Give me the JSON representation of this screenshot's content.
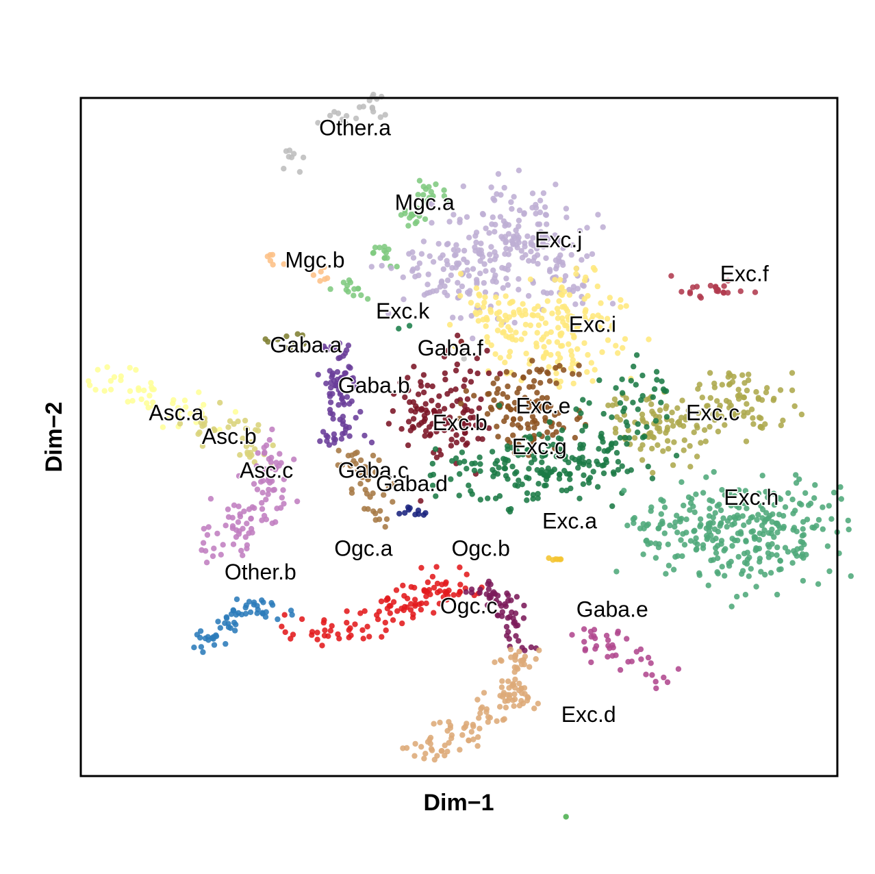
{
  "chart_data": {
    "type": "scatter",
    "title": "",
    "xlabel": "Dim−1",
    "ylabel": "Dim−2",
    "xlim": [
      -50,
      50
    ],
    "ylim": [
      -50,
      50
    ],
    "grid": false,
    "legend": "none",
    "clusters": [
      {
        "name": "Other.a",
        "color": "#bdbdbd",
        "n": 30,
        "points": [
          [
            -22,
            -41
          ],
          [
            -16,
            -47
          ],
          [
            -12,
            -49
          ]
        ],
        "sx": 1.4,
        "sy": 1.0
      },
      {
        "name": "Mgc.a",
        "color": "#7fc97f",
        "n": 55,
        "points": [
          [
            -14,
            -22
          ],
          [
            -10,
            -27
          ],
          [
            -6,
            -33
          ],
          [
            -4,
            -36
          ]
        ],
        "sx": 1.1,
        "sy": 0.9
      },
      {
        "name": "Mgc.b",
        "color": "#fdc086",
        "n": 12,
        "points": [
          [
            -25,
            -26
          ],
          [
            -21,
            -25
          ],
          [
            -18,
            -24
          ]
        ],
        "sx": 1.0,
        "sy": 1.0
      },
      {
        "name": "Exc.j",
        "color": "#beaed4",
        "n": 280,
        "points": [
          [
            1,
            -26
          ],
          [
            6,
            -27
          ],
          [
            11,
            -27
          ],
          [
            9,
            -33
          ],
          [
            4,
            -30
          ],
          [
            -2,
            -23
          ],
          [
            13,
            -23
          ]
        ],
        "sx": 4.2,
        "sy": 3.0
      },
      {
        "name": "Exc.f",
        "color": "#b03a4e",
        "n": 22,
        "points": [
          [
            31,
            -22
          ],
          [
            34,
            -22
          ],
          [
            36,
            -22
          ]
        ],
        "sx": 1.3,
        "sy": 0.8
      },
      {
        "name": "Exc.k",
        "color": "#1b7e4a",
        "n": 2,
        "points": [
          [
            -7,
            -16
          ]
        ],
        "sx": 0.4,
        "sy": 0.4
      },
      {
        "name": "Exc.i",
        "color": "#ffe87c",
        "n": 200,
        "points": [
          [
            7,
            -17
          ],
          [
            12,
            -17
          ],
          [
            16,
            -17
          ],
          [
            16,
            -21
          ],
          [
            10,
            -13
          ],
          [
            3,
            -18
          ],
          [
            14,
            -11
          ]
        ],
        "sx": 3.2,
        "sy": 2.5
      },
      {
        "name": "Gaba.a",
        "color": "#7f7f32",
        "n": 10,
        "points": [
          [
            -24,
            -14
          ],
          [
            -21,
            -14
          ]
        ],
        "sx": 1.0,
        "sy": 0.6
      },
      {
        "name": "Gaba.f",
        "color": "#c0c0c0",
        "n": 2,
        "points": [
          [
            0,
            -12
          ]
        ],
        "sx": 0.4,
        "sy": 0.4
      },
      {
        "name": "Gaba.b",
        "color": "#6a3d9a",
        "n": 85,
        "points": [
          [
            -16,
            -12
          ],
          [
            -16,
            -9
          ],
          [
            -16,
            -5
          ],
          [
            -16,
            -1
          ]
        ],
        "sx": 1.3,
        "sy": 1.2
      },
      {
        "name": "Asc.a",
        "color": "#ffff99",
        "n": 50,
        "points": [
          [
            -46,
            -9
          ],
          [
            -41,
            -6
          ],
          [
            -35,
            -3
          ]
        ],
        "sx": 2.0,
        "sy": 1.3
      },
      {
        "name": "Asc.b",
        "color": "#d9d37a",
        "n": 40,
        "points": [
          [
            -33,
            -2
          ],
          [
            -29,
            -1
          ],
          [
            -27,
            2
          ]
        ],
        "sx": 1.4,
        "sy": 1.1
      },
      {
        "name": "Asc.c",
        "color": "#c07ec0",
        "n": 95,
        "points": [
          [
            -25,
            3
          ],
          [
            -25,
            8
          ],
          [
            -28,
            12
          ],
          [
            -31,
            15
          ]
        ],
        "sx": 1.7,
        "sy": 1.6
      },
      {
        "name": "Exc.b",
        "color": "#7b1526",
        "n": 120,
        "points": [
          [
            -4,
            -6
          ],
          [
            -2,
            -2
          ],
          [
            1,
            -1
          ],
          [
            -1,
            -8
          ],
          [
            -5,
            -2
          ]
        ],
        "sx": 2.4,
        "sy": 2.2
      },
      {
        "name": "Exc.e",
        "color": "#8c5220",
        "n": 120,
        "points": [
          [
            5,
            -5
          ],
          [
            9,
            -3
          ],
          [
            7,
            -1
          ],
          [
            13,
            -2
          ],
          [
            11,
            -8
          ]
        ],
        "sx": 2.6,
        "sy": 2.0
      },
      {
        "name": "Exc.c",
        "color": "#ada84c",
        "n": 160,
        "points": [
          [
            36,
            -6
          ],
          [
            40,
            -5
          ],
          [
            32,
            -2
          ],
          [
            26,
            0
          ],
          [
            24,
            -3
          ]
        ],
        "sx": 2.8,
        "sy": 2.2
      },
      {
        "name": "Exc.g",
        "color": "#1b7a45",
        "n": 230,
        "points": [
          [
            3,
            5
          ],
          [
            8,
            6
          ],
          [
            13,
            5
          ],
          [
            17,
            4
          ],
          [
            19,
            2
          ],
          [
            10,
            3
          ],
          [
            23,
            -6
          ]
        ],
        "sx": 3.4,
        "sy": 2.4
      },
      {
        "name": "Gaba.c",
        "color": "#a67944",
        "n": 45,
        "points": [
          [
            -14,
            4
          ],
          [
            -12,
            7
          ],
          [
            -11,
            12
          ]
        ],
        "sx": 1.5,
        "sy": 1.3
      },
      {
        "name": "Gaba.d",
        "color": "#1a237e",
        "n": 10,
        "points": [
          [
            -6,
            11
          ]
        ],
        "sx": 0.9,
        "sy": 0.4
      },
      {
        "name": "Exc.h",
        "color": "#4ea87a",
        "n": 300,
        "points": [
          [
            36,
            12
          ],
          [
            40,
            14
          ],
          [
            33,
            15
          ],
          [
            42,
            18
          ],
          [
            45,
            10
          ],
          [
            29,
            13
          ]
        ],
        "sx": 4.2,
        "sy": 2.8
      },
      {
        "name": "Exc.a",
        "color": "#f4c430",
        "n": 6,
        "points": [
          [
            13,
            18
          ]
        ],
        "sx": 0.5,
        "sy": 0.3
      },
      {
        "name": "Other.b",
        "color": "#2b7bba",
        "n": 55,
        "points": [
          [
            -33,
            30
          ],
          [
            -30,
            27
          ],
          [
            -26,
            25
          ]
        ],
        "sx": 1.3,
        "sy": 1.0
      },
      {
        "name": "Ogc.a",
        "color": "#e31a1c",
        "n": 110,
        "points": [
          [
            -19,
            29
          ],
          [
            -13,
            28
          ],
          [
            -8,
            25
          ],
          [
            -4,
            23
          ],
          [
            -1,
            22
          ]
        ],
        "sx": 2.0,
        "sy": 1.3
      },
      {
        "name": "Ogc.b",
        "color": "#7b1a5a",
        "n": 55,
        "points": [
          [
            3,
            23
          ],
          [
            6,
            24
          ],
          [
            7,
            27
          ],
          [
            8,
            30
          ]
        ],
        "sx": 1.3,
        "sy": 1.0
      },
      {
        "name": "Ogc.c",
        "color": "#ddaa78",
        "n": 120,
        "points": [
          [
            8,
            33
          ],
          [
            7,
            38
          ],
          [
            4,
            41
          ],
          [
            0,
            44
          ],
          [
            -4,
            46
          ]
        ],
        "sx": 1.5,
        "sy": 1.2
      },
      {
        "name": "Gaba.e",
        "color": "#b0488e",
        "n": 40,
        "points": [
          [
            17,
            29
          ],
          [
            20,
            31
          ],
          [
            23,
            33
          ],
          [
            26,
            35
          ]
        ],
        "sx": 1.3,
        "sy": 1.1
      },
      {
        "name": "Exc.d",
        "color": "#4caf50",
        "n": 1,
        "points": [
          [
            14,
            56
          ]
        ],
        "sx": 0.2,
        "sy": 0.2
      }
    ],
    "labels": [
      {
        "text": "Other.a",
        "x": -18.5,
        "y": -44.5
      },
      {
        "text": "Mgc.a",
        "x": -8.5,
        "y": -33.5
      },
      {
        "text": "Mgc.b",
        "x": -23.0,
        "y": -25.0
      },
      {
        "text": "Exc.j",
        "x": 10.0,
        "y": -28.0
      },
      {
        "text": "Exc.f",
        "x": 34.5,
        "y": -23.0
      },
      {
        "text": "Exc.k",
        "x": -11.0,
        "y": -17.5
      },
      {
        "text": "Exc.i",
        "x": 14.5,
        "y": -15.5
      },
      {
        "text": "Gaba.a",
        "x": -25.0,
        "y": -12.5
      },
      {
        "text": "Gaba.f",
        "x": -5.5,
        "y": -12.0
      },
      {
        "text": "Gaba.b",
        "x": -16.0,
        "y": -6.5
      },
      {
        "text": "Asc.a",
        "x": -41.0,
        "y": -2.5
      },
      {
        "text": "Asc.b",
        "x": -34.0,
        "y": 1.0
      },
      {
        "text": "Asc.c",
        "x": -29.0,
        "y": 6.0
      },
      {
        "text": "Exc.b",
        "x": -3.5,
        "y": -1.0
      },
      {
        "text": "Exc.e",
        "x": 7.5,
        "y": -3.5
      },
      {
        "text": "Exc.c",
        "x": 30.0,
        "y": -2.5
      },
      {
        "text": "Exc.g",
        "x": 7.0,
        "y": 2.5
      },
      {
        "text": "Gaba.c",
        "x": -16.0,
        "y": 6.0
      },
      {
        "text": "Gaba.d",
        "x": -11.0,
        "y": 8.0
      },
      {
        "text": "Exc.h",
        "x": 35.0,
        "y": 10.0
      },
      {
        "text": "Exc.a",
        "x": 11.0,
        "y": 13.5
      },
      {
        "text": "Other.b",
        "x": -31.0,
        "y": 21.0
      },
      {
        "text": "Ogc.a",
        "x": -16.5,
        "y": 17.5
      },
      {
        "text": "Ogc.b",
        "x": -1.0,
        "y": 17.5
      },
      {
        "text": "Ogc.c",
        "x": -2.5,
        "y": 26.0
      },
      {
        "text": "Gaba.e",
        "x": 15.5,
        "y": 26.5
      },
      {
        "text": "Exc.d",
        "x": 13.5,
        "y": 42.0
      }
    ]
  }
}
